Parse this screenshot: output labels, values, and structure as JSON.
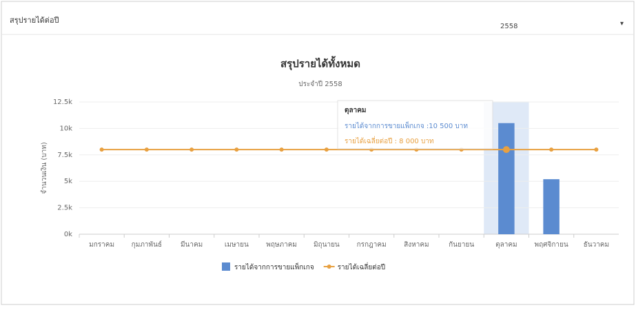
{
  "header": {
    "title": "สรุปรายได้ต่อปี",
    "year": "2558",
    "caret": "▾"
  },
  "chart_data": {
    "type": "bar",
    "title": "สรุปรายได้ทั้งหมด",
    "subtitle": "ประจำปี 2558",
    "y_label": "จำนวนเงิน (บาท)",
    "categories": [
      "มกราคม",
      "กุมภาพันธ์",
      "มีนาคม",
      "เมษายน",
      "พฤษภาคม",
      "มิถุนายน",
      "กรกฎาคม",
      "สิงหาคม",
      "กันยายน",
      "ตุลาคม",
      "พฤศจิกายน",
      "ธันวาคม"
    ],
    "series": [
      {
        "name": "รายได้จากการขายแพ็กเกจ",
        "type": "bar",
        "color": "#5b8bd0",
        "values": [
          0,
          0,
          0,
          0,
          0,
          0,
          0,
          0,
          0,
          10500,
          5200,
          0
        ]
      },
      {
        "name": "รายได้เฉลี่ยต่อปี",
        "type": "line",
        "color": "#e8a040",
        "values": [
          8000,
          8000,
          8000,
          8000,
          8000,
          8000,
          8000,
          8000,
          8000,
          8000,
          8000,
          8000
        ]
      }
    ],
    "ylim": [
      0,
      12500
    ],
    "yticks": [
      {
        "value": 0,
        "label": "0k"
      },
      {
        "value": 2500,
        "label": "2.5k"
      },
      {
        "value": 5000,
        "label": "5k"
      },
      {
        "value": 7500,
        "label": "7.5k"
      },
      {
        "value": 10000,
        "label": "10k"
      },
      {
        "value": 12500,
        "label": "12.5k"
      }
    ],
    "grid": true,
    "tooltip": {
      "title": "ตุลาคม",
      "lines": [
        "รายได้จากการขายแพ็กเกจ :10 500 บาท",
        "รายได้เฉลี่ยต่อปี : 8 000 บาท"
      ]
    }
  }
}
